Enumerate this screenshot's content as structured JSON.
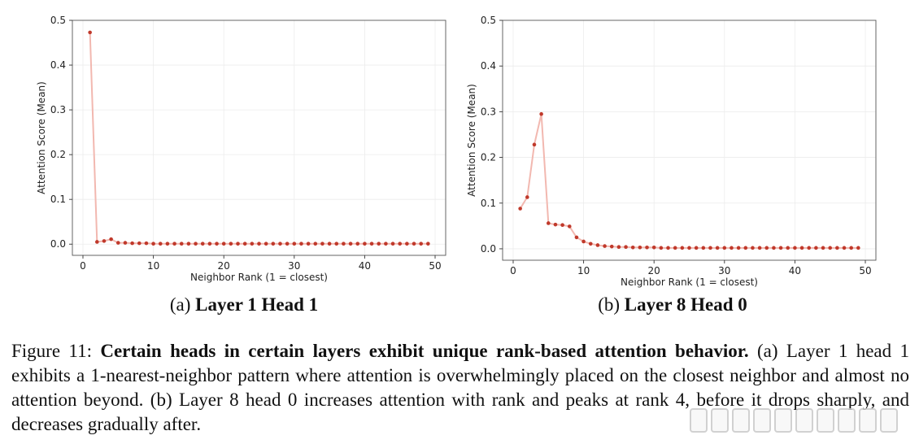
{
  "chart_data": [
    {
      "type": "line",
      "subcaption_prefix": "(a)",
      "subcaption_bold": "Layer 1 Head 1",
      "xlabel": "Neighbor Rank (1 = closest)",
      "ylabel": "Attention Score (Mean)",
      "xlim": [
        -1.5,
        51.5
      ],
      "ylim": [
        -0.025,
        0.5
      ],
      "xticks": [
        0,
        10,
        20,
        30,
        40,
        50
      ],
      "yticks": [
        0.0,
        0.1,
        0.2,
        0.3,
        0.4,
        0.5
      ],
      "ytick_labels": [
        "0.0",
        "0.1",
        "0.2",
        "0.3",
        "0.4",
        "0.5"
      ],
      "grid": true,
      "line_color": "#f2b8b0",
      "marker_color": "#c0392b",
      "x": [
        1,
        2,
        3,
        4,
        5,
        6,
        7,
        8,
        9,
        10,
        11,
        12,
        13,
        14,
        15,
        16,
        17,
        18,
        19,
        20,
        21,
        22,
        23,
        24,
        25,
        26,
        27,
        28,
        29,
        30,
        31,
        32,
        33,
        34,
        35,
        36,
        37,
        38,
        39,
        40,
        41,
        42,
        43,
        44,
        45,
        46,
        47,
        48,
        49
      ],
      "y": [
        0.473,
        0.005,
        0.007,
        0.011,
        0.003,
        0.003,
        0.002,
        0.002,
        0.002,
        0.001,
        0.001,
        0.001,
        0.001,
        0.001,
        0.001,
        0.001,
        0.001,
        0.001,
        0.001,
        0.001,
        0.001,
        0.001,
        0.001,
        0.001,
        0.001,
        0.001,
        0.001,
        0.001,
        0.001,
        0.001,
        0.001,
        0.001,
        0.001,
        0.001,
        0.001,
        0.001,
        0.001,
        0.001,
        0.001,
        0.001,
        0.001,
        0.001,
        0.001,
        0.001,
        0.001,
        0.001,
        0.001,
        0.001,
        0.001
      ]
    },
    {
      "type": "line",
      "subcaption_prefix": "(b)",
      "subcaption_bold": "Layer 8 Head 0",
      "xlabel": "Neighbor Rank (1 = closest)",
      "ylabel": "Attention Score (Mean)",
      "xlim": [
        -1.5,
        51.5
      ],
      "ylim": [
        -0.025,
        0.5
      ],
      "xticks": [
        0,
        10,
        20,
        30,
        40,
        50
      ],
      "yticks": [
        0.0,
        0.1,
        0.2,
        0.3,
        0.4,
        0.5
      ],
      "ytick_labels": [
        "0.0",
        "0.1",
        "0.2",
        "0.3",
        "0.4",
        "0.5"
      ],
      "grid": true,
      "line_color": "#f2b8b0",
      "marker_color": "#c0392b",
      "x": [
        1,
        2,
        3,
        4,
        5,
        6,
        7,
        8,
        9,
        10,
        11,
        12,
        13,
        14,
        15,
        16,
        17,
        18,
        19,
        20,
        21,
        22,
        23,
        24,
        25,
        26,
        27,
        28,
        29,
        30,
        31,
        32,
        33,
        34,
        35,
        36,
        37,
        38,
        39,
        40,
        41,
        42,
        43,
        44,
        45,
        46,
        47,
        48,
        49
      ],
      "y": [
        0.088,
        0.113,
        0.228,
        0.295,
        0.056,
        0.053,
        0.052,
        0.049,
        0.025,
        0.016,
        0.011,
        0.008,
        0.006,
        0.005,
        0.004,
        0.004,
        0.003,
        0.003,
        0.003,
        0.003,
        0.002,
        0.002,
        0.002,
        0.002,
        0.002,
        0.002,
        0.002,
        0.002,
        0.002,
        0.002,
        0.002,
        0.002,
        0.002,
        0.002,
        0.002,
        0.002,
        0.002,
        0.002,
        0.002,
        0.002,
        0.002,
        0.002,
        0.002,
        0.002,
        0.002,
        0.002,
        0.002,
        0.002,
        0.002
      ]
    }
  ],
  "caption": {
    "label": "Figure 11:",
    "bold": "Certain heads in certain layers exhibit unique rank-based attention behavior.",
    "body": "(a) Layer 1 head 1 exhibits a 1-nearest-neighbor pattern where attention is overwhelmingly placed on the closest neighbor and almost no attention beyond. (b) Layer 8 head 0 increases attention with rank and peaks at rank 4, before it drops sharply, and decreases gradually after."
  }
}
